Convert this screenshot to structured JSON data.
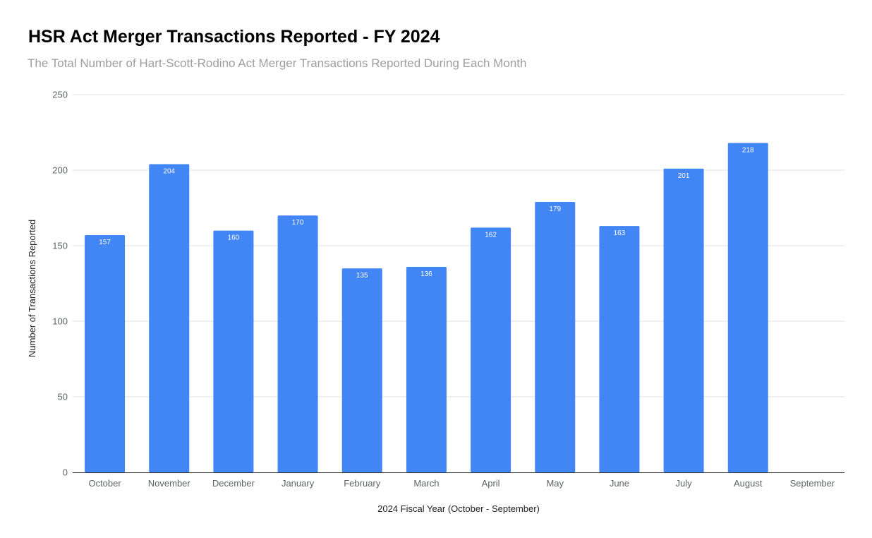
{
  "chart_data": {
    "type": "bar",
    "title": "HSR Act Merger Transactions Reported - FY 2024",
    "subtitle": "The Total Number of Hart-Scott-Rodino Act Merger Transactions Reported During Each Month",
    "xlabel": "2024 Fiscal Year (October - September)",
    "ylabel": "Number of Transactions Reported",
    "categories": [
      "October",
      "November",
      "December",
      "January",
      "February",
      "March",
      "April",
      "May",
      "June",
      "July",
      "August",
      "September"
    ],
    "values": [
      157,
      204,
      160,
      170,
      135,
      136,
      162,
      179,
      163,
      201,
      218,
      null
    ],
    "data_labels": [
      "157",
      "204",
      "160",
      "170",
      "135",
      "136",
      "162",
      "179",
      "163",
      "201",
      "218",
      ""
    ],
    "yticks": [
      "0",
      "50",
      "100",
      "150",
      "200",
      "250"
    ],
    "ylim": [
      0,
      250
    ],
    "grid": true,
    "legend": "none",
    "colors": {
      "bar": "#4285f4",
      "grid": "#e0e0e0",
      "axis": "#333333"
    }
  }
}
